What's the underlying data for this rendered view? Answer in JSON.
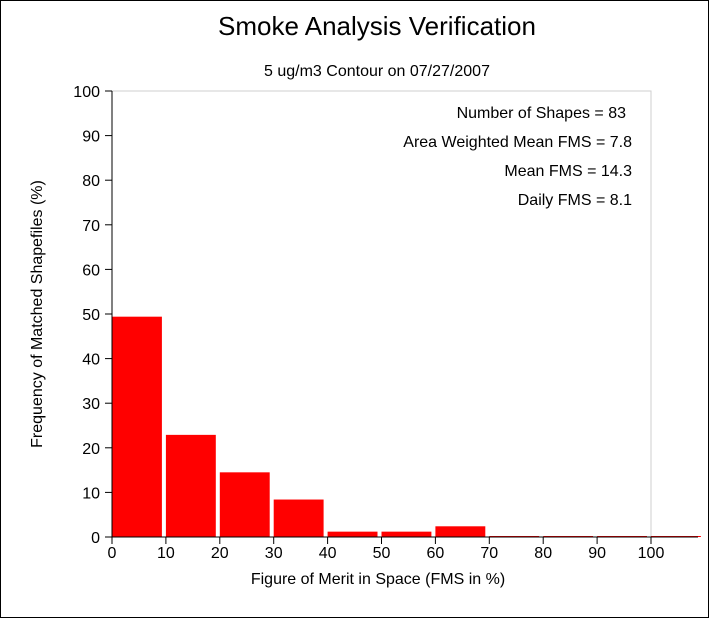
{
  "chart_data": {
    "type": "bar",
    "title": "Smoke Analysis Verification",
    "subtitle": "5 ug/m3 Contour on 07/27/2007",
    "xlabel": "Figure of Merit in Space (FMS in %)",
    "ylabel": "Frequency of Matched Shapefiles (%)",
    "xlim": [
      0,
      100
    ],
    "ylim": [
      0,
      100
    ],
    "xticks": [
      0,
      10,
      20,
      30,
      40,
      50,
      60,
      70,
      80,
      90,
      100
    ],
    "yticks": [
      0,
      10,
      20,
      30,
      40,
      50,
      60,
      70,
      80,
      90,
      100
    ],
    "bins": [
      {
        "x0": 0,
        "x1": 10,
        "value": 49.4
      },
      {
        "x0": 10,
        "x1": 20,
        "value": 22.9
      },
      {
        "x0": 20,
        "x1": 30,
        "value": 14.5
      },
      {
        "x0": 30,
        "x1": 40,
        "value": 8.4
      },
      {
        "x0": 40,
        "x1": 50,
        "value": 1.2
      },
      {
        "x0": 50,
        "x1": 60,
        "value": 1.2
      },
      {
        "x0": 60,
        "x1": 70,
        "value": 2.4
      },
      {
        "x0": 70,
        "x1": 80,
        "value": 0
      },
      {
        "x0": 80,
        "x1": 90,
        "value": 0
      },
      {
        "x0": 90,
        "x1": 100,
        "value": 0
      },
      {
        "x0": 100,
        "x1": 110,
        "value": 0
      }
    ],
    "bar_color": "#ff0000",
    "annotations": [
      "Number of Shapes = 83",
      "Area Weighted Mean FMS = 7.8",
      "Mean FMS = 14.3",
      "Daily FMS = 8.1"
    ],
    "grid": false,
    "legend": "none"
  }
}
